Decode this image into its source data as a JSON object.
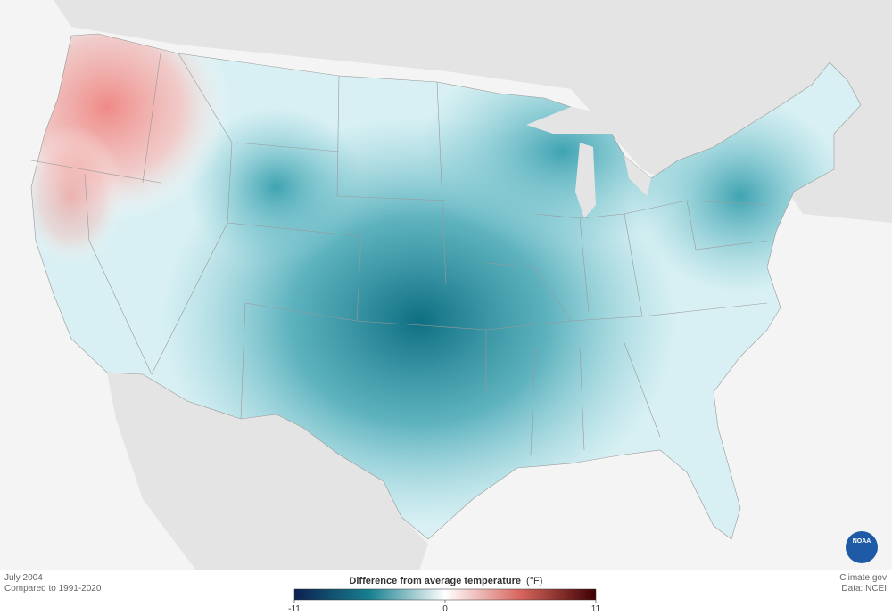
{
  "header": {
    "date": "July 2004",
    "baseline": "Compared to 1991-2020"
  },
  "legend": {
    "title": "Difference from average temperature",
    "unit": "(°F)",
    "range": [
      -11,
      11
    ],
    "ticks": [
      -11,
      0,
      11
    ],
    "colors": [
      "#0c2150",
      "#18808f",
      "#ffffff",
      "#d7655e",
      "#3d0000"
    ]
  },
  "credits": {
    "site": "Climate.gov",
    "source": "Data: NCEI",
    "logo": "NOAA"
  }
}
